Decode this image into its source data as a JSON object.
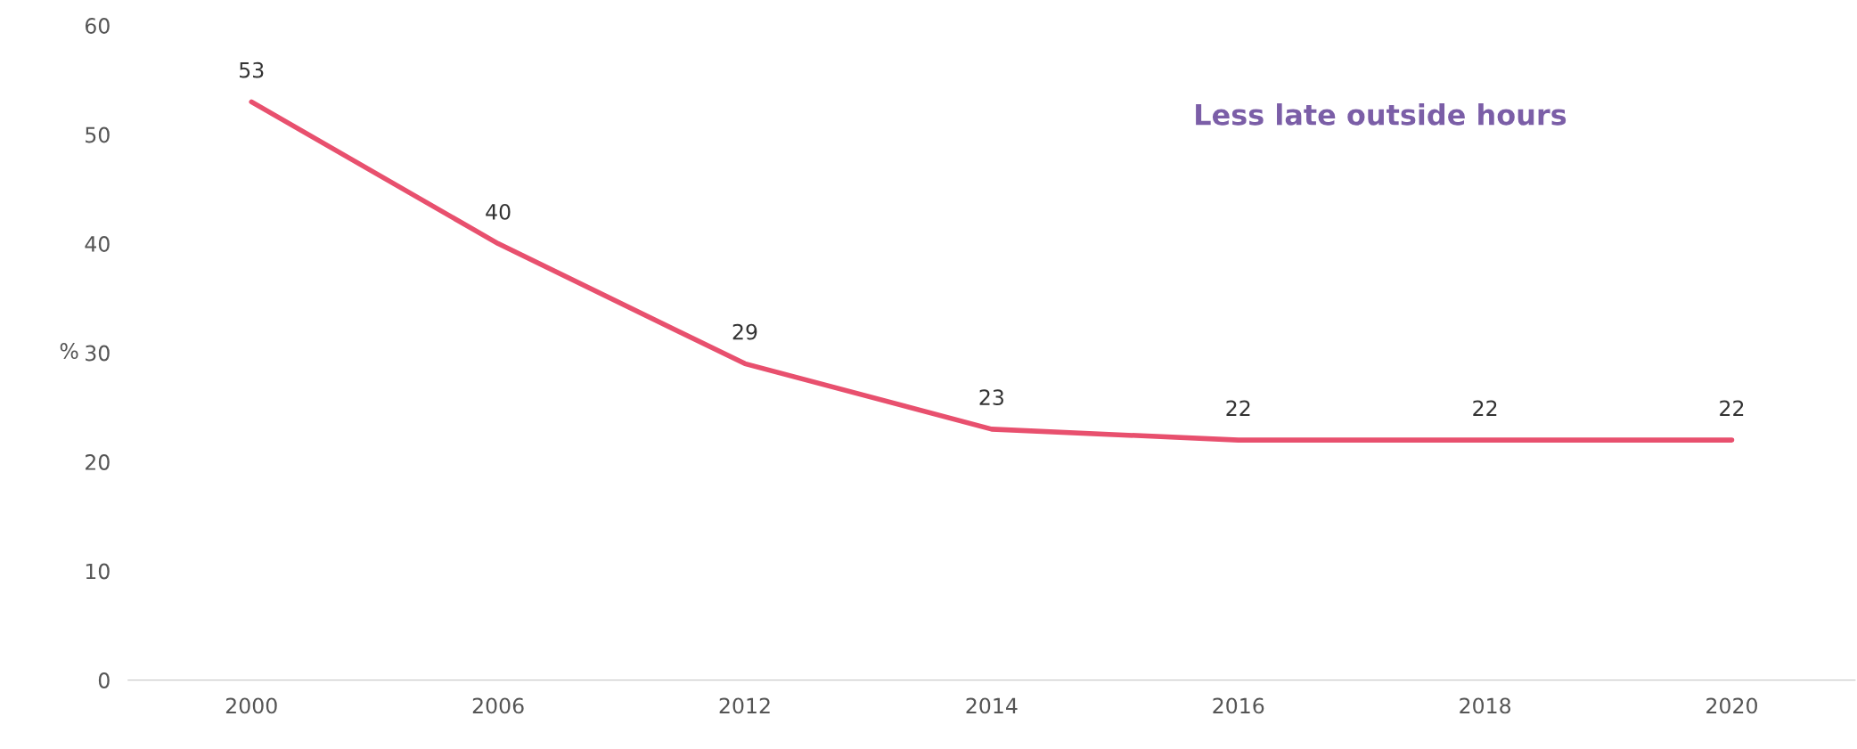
{
  "chart_data": {
    "type": "line",
    "ylabel": "%",
    "categories": [
      "2000",
      "2006",
      "2012",
      "2014",
      "2016",
      "2018",
      "2020"
    ],
    "series": [
      {
        "color": "#e8506e",
        "values": [
          53,
          40,
          29,
          23,
          22,
          22,
          22
        ]
      }
    ],
    "ylim": [
      0,
      60
    ],
    "yticks": [
      0,
      10,
      20,
      30,
      40,
      50,
      60
    ],
    "data_labels": true,
    "grid": false,
    "legend": false,
    "marker": "none",
    "line_style": "solid",
    "annotations": [
      "Less late outside hours"
    ]
  }
}
